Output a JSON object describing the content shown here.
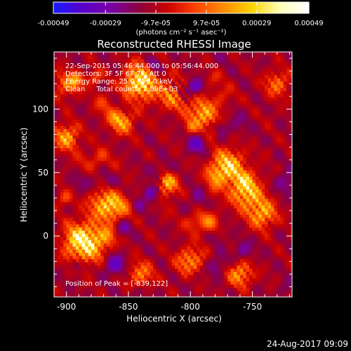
{
  "chart_data": {
    "type": "heatmap",
    "title": "Reconstructed RHESSI Image",
    "xlabel": "Heliocentric X (arcsec)",
    "ylabel": "Heliocentric Y (arcsec)",
    "xlim": [
      -910,
      -718
    ],
    "ylim": [
      -48,
      145
    ],
    "xticks": [
      {
        "value": -900,
        "label": "-900"
      },
      {
        "value": -850,
        "label": "-850"
      },
      {
        "value": -800,
        "label": "-800"
      },
      {
        "value": -750,
        "label": "-750"
      }
    ],
    "yticks": [
      {
        "value": 0,
        "label": "0"
      },
      {
        "value": 50,
        "label": "50"
      },
      {
        "value": 100,
        "label": "100"
      }
    ],
    "colorbar": {
      "label": "(photons cm⁻² s⁻¹ asec⁻²)",
      "min": -0.00049,
      "max": 0.00049,
      "ticks": [
        {
          "value": -0.00049,
          "label": "-0.00049"
        },
        {
          "value": -0.00029,
          "label": "-0.00029"
        },
        {
          "value": -9.7e-05,
          "label": "-9.7e-05"
        },
        {
          "value": 9.7e-05,
          "label": "9.7e-05"
        },
        {
          "value": 0.00029,
          "label": "0.00029"
        },
        {
          "value": 0.00049,
          "label": "0.00049"
        }
      ],
      "colors": [
        "#1a1aff",
        "#5a00c8",
        "#7a00a8",
        "#8a0040",
        "#c80000",
        "#ff4000",
        "#ff8c00",
        "#ffd200",
        "#ffffb4",
        "#ffffff"
      ]
    },
    "annotations": [
      "22-Sep-2015 05:46:44.000 to 05:56:44.000",
      "Detectors: 3F 5F 6F 7F, Att 0",
      "Energy Range: 25.0 - 50.0 keV",
      "Clean     Total counts: 1.89E+03"
    ],
    "peak_label": "Position of Peak = [-839,122]",
    "peak": {
      "x": -839,
      "y": 122
    },
    "hotspots": [
      {
        "x": -885,
        "y": -5,
        "value": 0.00049,
        "sigma": 11
      },
      {
        "x": -868,
        "y": 25,
        "value": 0.00035,
        "sigma": 9
      },
      {
        "x": -838,
        "y": 122,
        "value": 0.00049,
        "sigma": 10
      },
      {
        "x": -812,
        "y": 112,
        "value": 0.0004,
        "sigma": 8
      },
      {
        "x": -790,
        "y": 96,
        "value": 0.00033,
        "sigma": 8
      },
      {
        "x": -770,
        "y": 55,
        "value": 0.00042,
        "sigma": 9
      },
      {
        "x": -755,
        "y": 35,
        "value": 0.00036,
        "sigma": 9
      },
      {
        "x": -742,
        "y": 18,
        "value": 0.0003,
        "sigma": 8
      },
      {
        "x": -900,
        "y": 78,
        "value": 0.0003,
        "sigma": 7
      },
      {
        "x": -855,
        "y": 90,
        "value": 0.00025,
        "sigma": 7
      },
      {
        "x": -820,
        "y": 40,
        "value": 0.00026,
        "sigma": 7
      },
      {
        "x": -800,
        "y": -20,
        "value": 0.00024,
        "sigma": 8
      },
      {
        "x": -760,
        "y": -30,
        "value": 0.00026,
        "sigma": 7
      },
      {
        "x": -840,
        "y": -30,
        "value": 0.0002,
        "sigma": 7
      },
      {
        "x": -900,
        "y": 120,
        "value": 0.00018,
        "sigma": 7
      },
      {
        "x": -730,
        "y": 120,
        "value": 0.00018,
        "sigma": 7
      }
    ]
  },
  "footer": {
    "timestamp": "24-Aug-2017 09:09"
  }
}
